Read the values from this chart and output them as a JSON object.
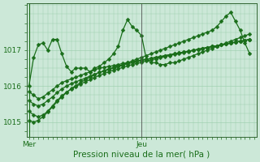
{
  "background_color": "#cce8d8",
  "plot_bg_color": "#cce8d8",
  "grid_color": "#99ccaa",
  "line_color": "#1a6e1a",
  "marker_color": "#1a6e1a",
  "xlabel": "Pression niveau de la mer( hPa )",
  "ylim": [
    1014.6,
    1018.3
  ],
  "xlim": [
    -0.5,
    48.5
  ],
  "yticks": [
    1015,
    1016,
    1017
  ],
  "xtick_mer": 0,
  "xtick_jeu": 24,
  "vline_mer": 0,
  "vline_jeu": 24,
  "series": [
    [
      1016.0,
      1016.8,
      1017.15,
      1017.2,
      1017.0,
      1017.3,
      1017.3,
      1016.9,
      1016.55,
      1016.4,
      1016.5,
      1016.5,
      1016.5,
      1016.4,
      1016.5,
      1016.55,
      1016.65,
      1016.75,
      1016.9,
      1017.1,
      1017.55,
      1017.85,
      1017.65,
      1017.55,
      1017.4,
      1016.75,
      1016.65,
      1016.65,
      1016.6,
      1016.6,
      1016.65,
      1016.65,
      1016.7,
      1016.75,
      1016.8,
      1016.85,
      1016.9,
      1016.95,
      1017.0,
      1017.05,
      1017.1,
      1017.15,
      1017.2,
      1017.25,
      1017.3,
      1017.35,
      1017.4,
      1017.45
    ],
    [
      1015.85,
      1015.75,
      1015.65,
      1015.7,
      1015.8,
      1015.9,
      1016.0,
      1016.1,
      1016.15,
      1016.2,
      1016.25,
      1016.3,
      1016.35,
      1016.4,
      1016.45,
      1016.5,
      1016.52,
      1016.55,
      1016.57,
      1016.6,
      1016.63,
      1016.65,
      1016.68,
      1016.7,
      1016.73,
      1016.75,
      1016.77,
      1016.8,
      1016.82,
      1016.85,
      1016.87,
      1016.9,
      1016.92,
      1016.95,
      1016.97,
      1017.0,
      1017.02,
      1017.05,
      1017.07,
      1017.1,
      1017.12,
      1017.15,
      1017.17,
      1017.2,
      1017.22,
      1017.25,
      1017.27,
      1017.3
    ],
    [
      1015.6,
      1015.5,
      1015.45,
      1015.5,
      1015.6,
      1015.7,
      1015.82,
      1015.92,
      1016.0,
      1016.07,
      1016.12,
      1016.17,
      1016.22,
      1016.28,
      1016.33,
      1016.38,
      1016.42,
      1016.46,
      1016.5,
      1016.54,
      1016.58,
      1016.62,
      1016.65,
      1016.68,
      1016.71,
      1016.74,
      1016.77,
      1016.8,
      1016.82,
      1016.85,
      1016.87,
      1016.9,
      1016.92,
      1016.95,
      1016.97,
      1017.0,
      1017.02,
      1017.05,
      1017.07,
      1017.1,
      1017.12,
      1017.15,
      1017.17,
      1017.2,
      1017.22,
      1017.25,
      1017.27,
      1017.3
    ],
    [
      1015.3,
      1015.2,
      1015.15,
      1015.2,
      1015.3,
      1015.45,
      1015.6,
      1015.73,
      1015.83,
      1015.92,
      1015.99,
      1016.06,
      1016.12,
      1016.18,
      1016.24,
      1016.3,
      1016.35,
      1016.4,
      1016.44,
      1016.48,
      1016.52,
      1016.56,
      1016.6,
      1016.63,
      1016.66,
      1016.7,
      1016.73,
      1016.76,
      1016.79,
      1016.82,
      1016.85,
      1016.88,
      1016.9,
      1016.93,
      1016.96,
      1016.99,
      1017.02,
      1017.05,
      1017.07,
      1017.1,
      1017.12,
      1017.15,
      1017.17,
      1017.2,
      1017.22,
      1017.25,
      1017.27,
      1017.3
    ],
    [
      1015.05,
      1015.0,
      1015.05,
      1015.15,
      1015.28,
      1015.42,
      1015.57,
      1015.7,
      1015.82,
      1015.93,
      1016.01,
      1016.1,
      1016.18,
      1016.25,
      1016.32,
      1016.38,
      1016.43,
      1016.48,
      1016.52,
      1016.56,
      1016.6,
      1016.65,
      1016.7,
      1016.75,
      1016.8,
      1016.85,
      1016.9,
      1016.95,
      1017.0,
      1017.05,
      1017.1,
      1017.15,
      1017.2,
      1017.25,
      1017.3,
      1017.35,
      1017.4,
      1017.45,
      1017.5,
      1017.55,
      1017.65,
      1017.8,
      1017.95,
      1018.05,
      1017.8,
      1017.55,
      1017.2,
      1016.9
    ]
  ],
  "marker_series": [
    0,
    4
  ],
  "all_markers": true,
  "marker_size": 2.5,
  "linewidth": 0.9,
  "fontsize_label": 7.5,
  "fontsize_tick": 6.5
}
